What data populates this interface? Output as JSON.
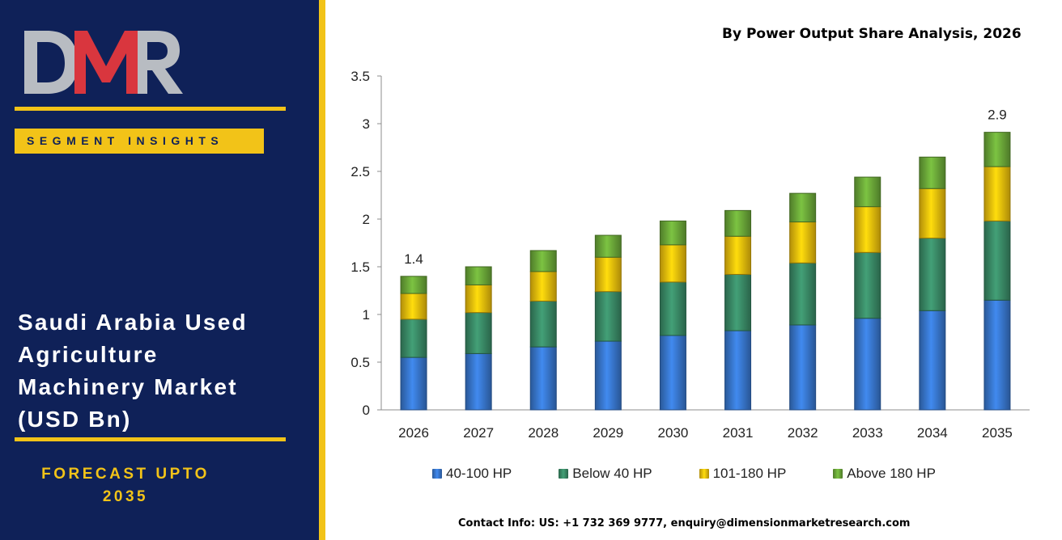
{
  "brand": {
    "logo_text": "DMR",
    "colors": {
      "navy": "#0f2158",
      "gold": "#f2c318",
      "logo_red": "#d9363e",
      "logo_gray": "#b8bcc2"
    }
  },
  "sidebar": {
    "segment_label": "SEGMENT INSIGHTS",
    "title_lines": [
      "Saudi Arabia Used",
      "Agriculture",
      "Machinery Market",
      "(USD Bn)"
    ],
    "forecast_lines": [
      "FORECAST UPTO",
      "2035"
    ]
  },
  "contact": "Contact Info: US: +1 732 369 9777, enquiry@dimensionmarketresearch.com",
  "chart_data": {
    "type": "bar",
    "stacked": true,
    "title": "By Power Output Share Analysis, 2026",
    "categories": [
      "2026",
      "2027",
      "2028",
      "2029",
      "2030",
      "2031",
      "2032",
      "2033",
      "2034",
      "2035"
    ],
    "series": [
      {
        "name": "40-100 HP",
        "color": "#3a7bd5",
        "values": [
          0.55,
          0.59,
          0.66,
          0.72,
          0.78,
          0.83,
          0.89,
          0.96,
          1.04,
          1.15
        ]
      },
      {
        "name": "Below 40 HP",
        "color": "#3c8f6a",
        "values": [
          0.4,
          0.43,
          0.48,
          0.52,
          0.56,
          0.59,
          0.65,
          0.69,
          0.76,
          0.83
        ]
      },
      {
        "name": "101-180 HP",
        "color": "#f7c50c",
        "values": [
          0.27,
          0.29,
          0.31,
          0.36,
          0.39,
          0.4,
          0.43,
          0.48,
          0.52,
          0.57
        ]
      },
      {
        "name": "Above 180 HP",
        "color": "#6fae3b",
        "values": [
          0.18,
          0.19,
          0.22,
          0.23,
          0.25,
          0.27,
          0.3,
          0.31,
          0.33,
          0.36
        ]
      }
    ],
    "data_labels": [
      {
        "category": "2026",
        "text": "1.4"
      },
      {
        "category": "2035",
        "text": "2.9"
      }
    ],
    "y_ticks": [
      "0",
      "0.5",
      "1",
      "1.5",
      "2",
      "2.5",
      "3",
      "3.5"
    ],
    "ylim": [
      0,
      3.5
    ],
    "grid": false,
    "legend_position": "bottom"
  }
}
